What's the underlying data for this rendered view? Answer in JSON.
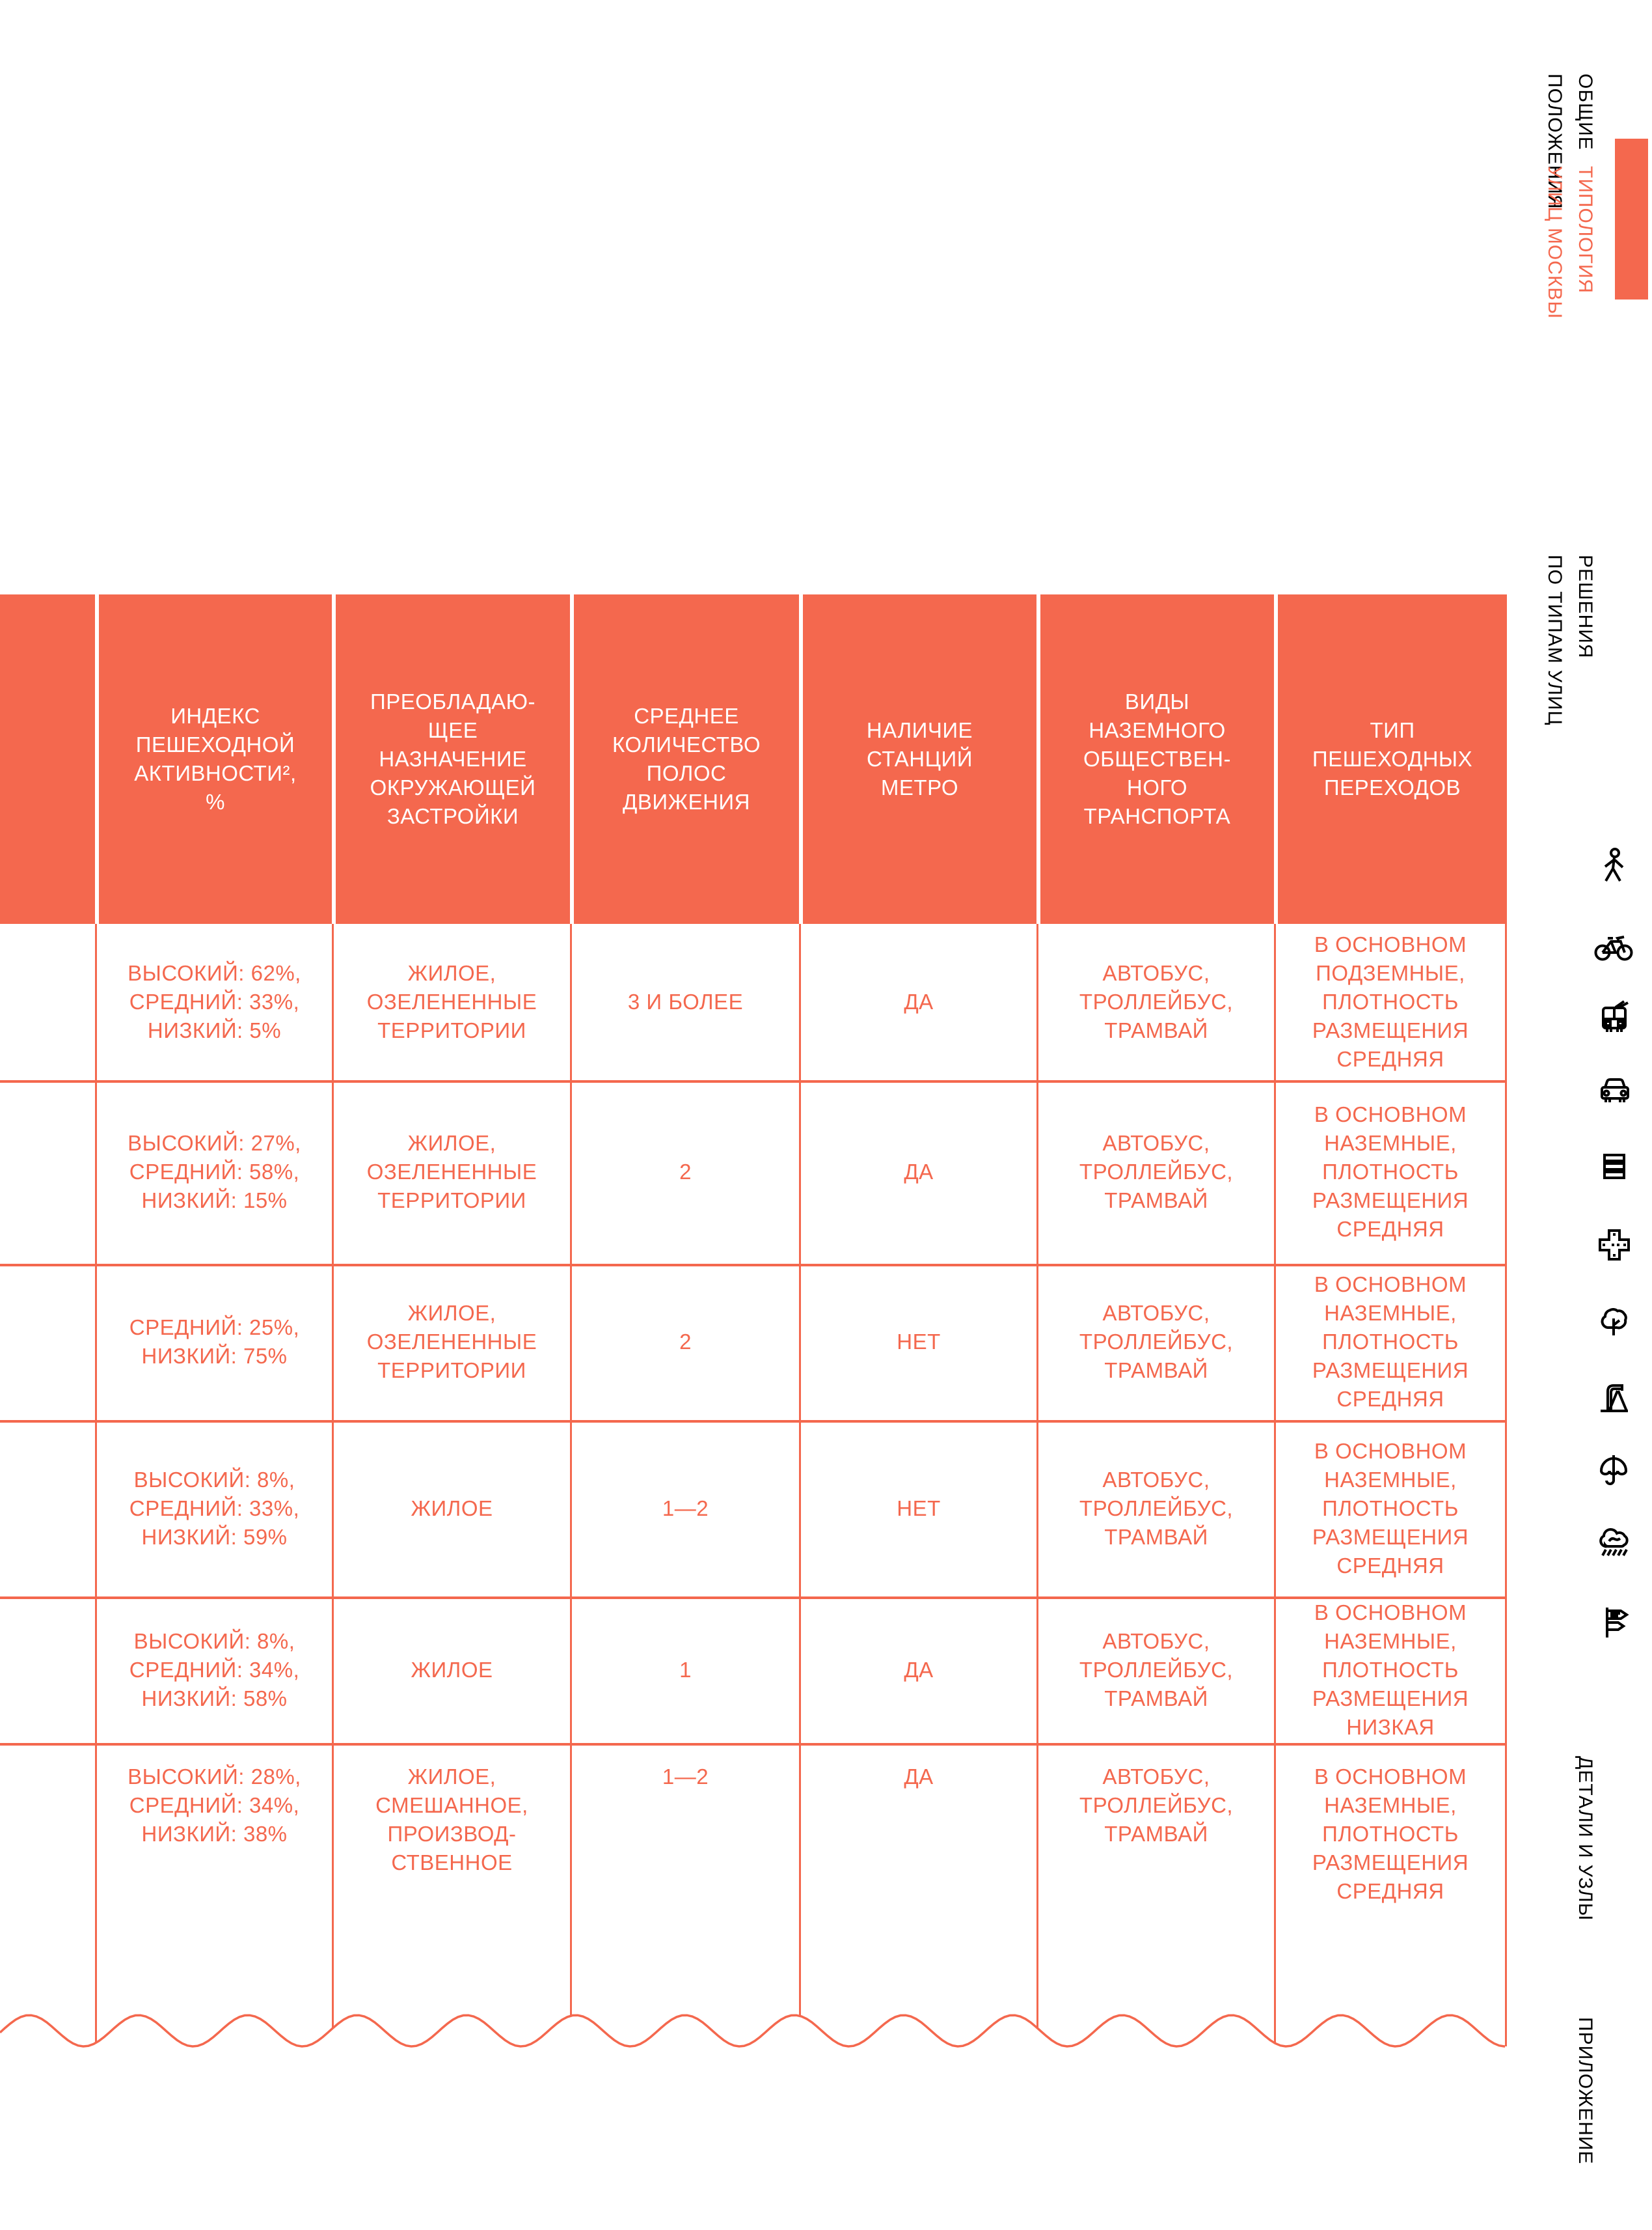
{
  "colors": {
    "accent": "#f4684e",
    "header_text": "#ffffff",
    "sidebar_text": "#000000"
  },
  "table": {
    "header": [
      "",
      "ИНДЕКС\nПЕШЕХОДНОЙ\nАКТИВНОСТИ²,\n%",
      "ПРЕОБЛАДАЮ-\nЩЕЕ\nНАЗНАЧЕНИЕ\nОКРУЖАЮЩЕЙ\nЗАСТРОЙКИ",
      "СРЕДНЕЕ\nКОЛИЧЕСТВО\nПОЛОС\nДВИЖЕНИЯ",
      "НАЛИЧИЕ\nСТАНЦИЙ\nМЕТРО",
      "ВИДЫ\nНАЗЕМНОГО\nОБЩЕСТВЕН-\nНОГО\nТРАНСПОРТА",
      "ТИП\nПЕШЕХОДНЫХ\nПЕРЕХОДОВ"
    ],
    "rows": [
      [
        "",
        "ВЫСОКИЙ: 62%,\nСРЕДНИЙ: 33%,\nНИЗКИЙ: 5%",
        "ЖИЛОЕ,\nОЗЕЛЕНЕННЫЕ\nТЕРРИТОРИИ",
        "3 И БОЛЕЕ",
        "ДА",
        "АВТОБУС,\nТРОЛЛЕЙБУС,\nТРАМВАЙ",
        "В ОСНОВНОМ\nПОДЗЕМНЫЕ,\nПЛОТНОСТЬ\nРАЗМЕЩЕНИЯ\nСРЕДНЯЯ"
      ],
      [
        "",
        "ВЫСОКИЙ: 27%,\nСРЕДНИЙ: 58%,\nНИЗКИЙ: 15%",
        "ЖИЛОЕ,\nОЗЕЛЕНЕННЫЕ\nТЕРРИТОРИИ",
        "2",
        "ДА",
        "АВТОБУС,\nТРОЛЛЕЙБУС,\nТРАМВАЙ",
        "В ОСНОВНОМ\nНАЗЕМНЫЕ,\nПЛОТНОСТЬ\nРАЗМЕЩЕНИЯ\nСРЕДНЯЯ"
      ],
      [
        "",
        "СРЕДНИЙ: 25%,\nНИЗКИЙ: 75%",
        "ЖИЛОЕ,\nОЗЕЛЕНЕННЫЕ\nТЕРРИТОРИИ",
        "2",
        "НЕТ",
        "АВТОБУС,\nТРОЛЛЕЙБУС,\nТРАМВАЙ",
        "В ОСНОВНОМ\nНАЗЕМНЫЕ,\nПЛОТНОСТЬ\nРАЗМЕЩЕНИЯ\nСРЕДНЯЯ"
      ],
      [
        "",
        "ВЫСОКИЙ: 8%,\nСРЕДНИЙ: 33%,\nНИЗКИЙ: 59%",
        "ЖИЛОЕ",
        "1—2",
        "НЕТ",
        "АВТОБУС,\nТРОЛЛЕЙБУС,\nТРАМВАЙ",
        "В ОСНОВНОМ\nНАЗЕМНЫЕ,\nПЛОТНОСТЬ\nРАЗМЕЩЕНИЯ\nСРЕДНЯЯ"
      ],
      [
        "",
        "ВЫСОКИЙ: 8%,\nСРЕДНИЙ: 34%,\nНИЗКИЙ: 58%",
        "ЖИЛОЕ",
        "1",
        "ДА",
        "АВТОБУС,\nТРОЛЛЕЙБУС,\nТРАМВАЙ",
        "В ОСНОВНОМ\nНАЗЕМНЫЕ,\nПЛОТНОСТЬ\nРАЗМЕЩЕНИЯ\nНИЗКАЯ"
      ],
      [
        "",
        "ВЫСОКИЙ: 28%,\nСРЕДНИЙ: 34%,\nНИЗКИЙ: 38%",
        "ЖИЛОЕ,\nСМЕШАННОЕ,\nПРОИЗВОД-\nСТВЕННОЕ",
        "1—2",
        "ДА",
        "АВТОБУС,\nТРОЛЛЕЙБУС,\nТРАМВАЙ",
        "В ОСНОВНОМ\nНАЗЕМНЫЕ,\nПЛОТНОСТЬ\nРАЗМЕЩЕНИЯ\nСРЕДНЯЯ"
      ]
    ]
  },
  "sidebar": {
    "sections": [
      {
        "label": "ОБЩИЕ\nПОЛОЖЕНИЯ",
        "active": false
      },
      {
        "label": "ТИПОЛОГИЯ\nУЛИЦ МОСКВЫ",
        "active": true
      },
      {
        "label": "РЕШЕНИЯ\nПО ТИПАМ УЛИЦ",
        "active": false
      },
      {
        "label": "ДЕТАЛИ И УЗЛЫ",
        "active": false
      },
      {
        "label": "ПРИЛОЖЕНИЕ",
        "active": false
      }
    ],
    "icons": [
      "pedestrian-icon",
      "bicycle-icon",
      "trolleybus-icon",
      "car-icon",
      "road-lanes-icon",
      "intersection-icon",
      "tree-icon",
      "water-pump-icon",
      "umbrella-icon",
      "rain-icon",
      "wayfinding-icon"
    ]
  }
}
